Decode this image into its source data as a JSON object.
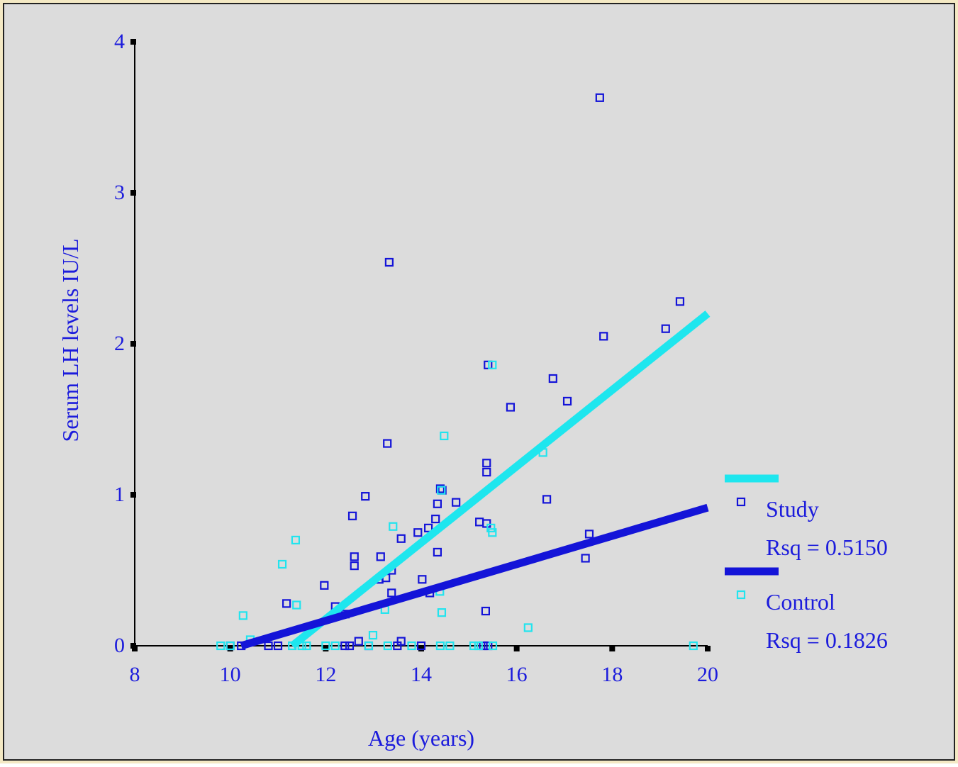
{
  "chart_data": {
    "type": "scatter",
    "xlabel": "Age (years)",
    "ylabel": "Serum LH levels IU/L",
    "xlim": [
      8,
      20
    ],
    "xticks": [
      8,
      10,
      12,
      14,
      16,
      18,
      20
    ],
    "ylim": [
      0,
      4
    ],
    "yticks": [
      0,
      1,
      2,
      3,
      4
    ],
    "series": [
      {
        "name": "Study",
        "color": "#1414d8",
        "fit_color": "#1ee6ee",
        "rsq_label": "Rsq = 0.5150",
        "fit": {
          "x": [
            11.3,
            20
          ],
          "y": [
            0,
            2.2
          ]
        },
        "x": [
          17.74,
          13.33,
          19.42,
          19.12,
          17.82,
          15.4,
          16.76,
          15.87,
          17.06,
          13.29,
          15.37,
          15.37,
          14.4,
          14.44,
          12.83,
          14.73,
          14.34,
          16.63,
          12.56,
          14.3,
          15.22,
          15.37,
          14.15,
          13.93,
          17.52,
          13.58,
          12.6,
          13.15,
          12.6,
          14.34,
          17.44,
          13.38,
          13.26,
          13.12,
          14.02,
          11.97,
          13.38,
          14.18,
          11.18,
          12.2,
          15.35,
          12.41,
          12.69,
          13.58,
          10.0,
          10.23,
          10.8,
          11.0,
          12.4,
          12.5,
          12.9,
          13.5,
          14.0,
          15.3,
          15.4
        ],
        "y": [
          3.63,
          2.54,
          2.28,
          2.1,
          2.05,
          1.86,
          1.77,
          1.58,
          1.62,
          1.34,
          1.21,
          1.15,
          1.04,
          1.03,
          0.99,
          0.95,
          0.94,
          0.97,
          0.86,
          0.84,
          0.82,
          0.81,
          0.78,
          0.75,
          0.74,
          0.71,
          0.59,
          0.59,
          0.53,
          0.62,
          0.58,
          0.5,
          0.45,
          0.44,
          0.44,
          0.4,
          0.35,
          0.35,
          0.28,
          0.26,
          0.23,
          0.21,
          0.03,
          0.03,
          0,
          0,
          0,
          0,
          0,
          0,
          0,
          0,
          0,
          0,
          0
        ]
      },
      {
        "name": "Control",
        "color": "#22e4ee",
        "fit_color": "#1414d8",
        "rsq_label": "Rsq = 0.1826",
        "fit": {
          "x": [
            10.23,
            20
          ],
          "y": [
            0,
            0.915
          ]
        },
        "x": [
          11.37,
          11.09,
          11.39,
          10.27,
          13.41,
          14.48,
          14.42,
          15.49,
          16.55,
          15.46,
          15.49,
          14.39,
          13.24,
          14.43,
          12.99,
          16.24,
          10.42,
          9.8,
          10.0,
          11.3,
          11.5,
          11.6,
          12.0,
          12.2,
          12.9,
          13.3,
          13.8,
          14.4,
          14.6,
          15.1,
          15.2,
          15.5,
          19.7
        ],
        "y": [
          0.7,
          0.54,
          0.27,
          0.2,
          0.79,
          1.39,
          1.03,
          1.86,
          1.28,
          0.78,
          0.75,
          0.36,
          0.24,
          0.22,
          0.07,
          0.12,
          0.04,
          0,
          0,
          0,
          0,
          0,
          0,
          0,
          0,
          0,
          0,
          0,
          0,
          0,
          0,
          0,
          0
        ]
      }
    ]
  }
}
